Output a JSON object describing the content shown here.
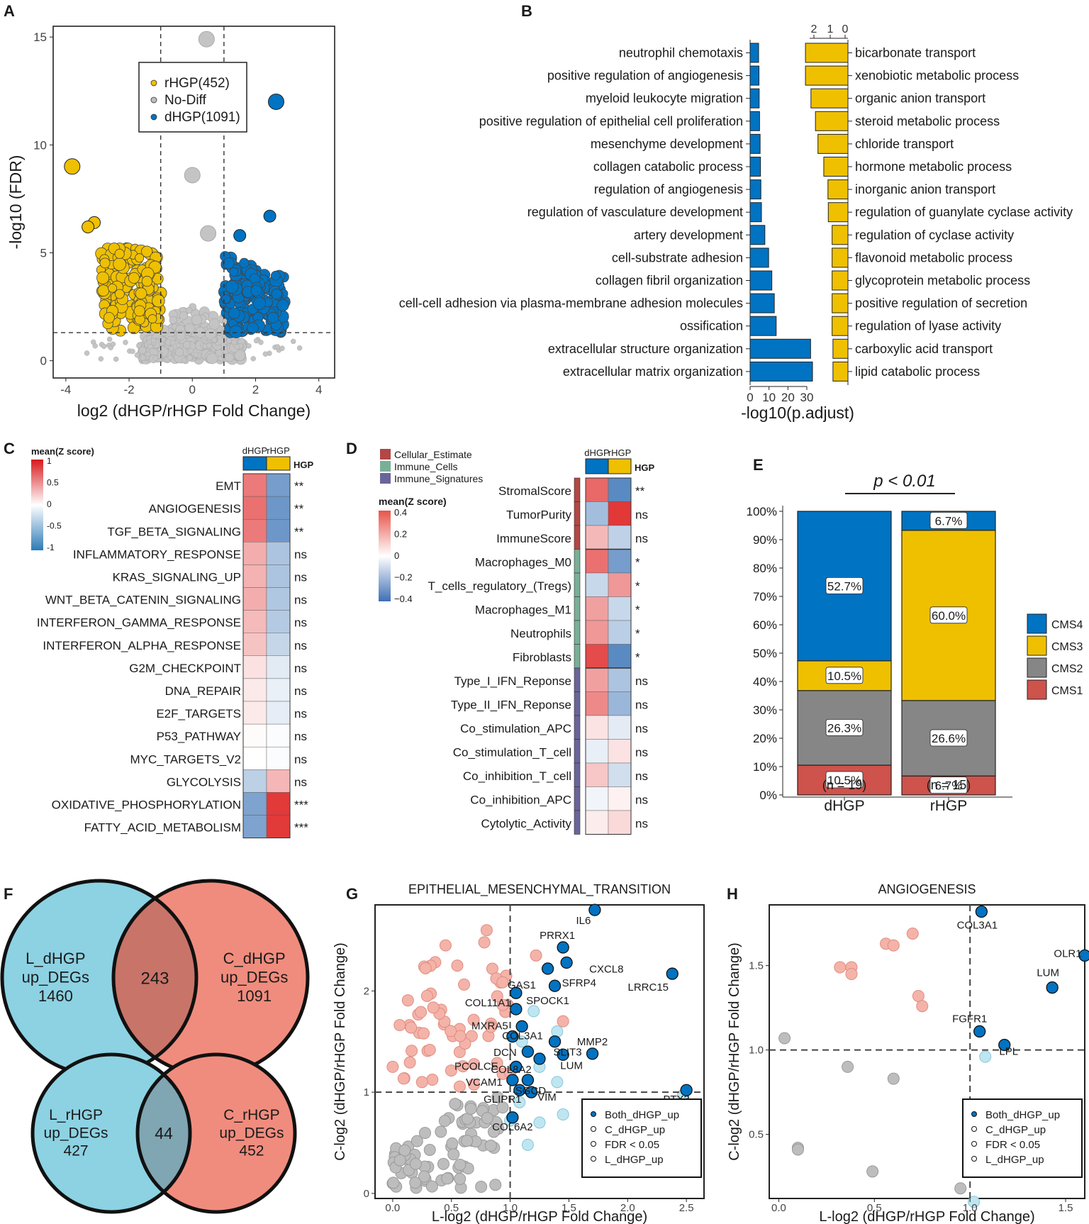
{
  "chart_data": [
    {
      "panel": "A",
      "type": "scatter",
      "xlabel": "log2 (dHGP/rHGP Fold Change)",
      "ylabel": "-log10 (FDR)",
      "xlim": [
        -4.4,
        4.5
      ],
      "ylim": [
        -0.8,
        15.5
      ],
      "xticks": [
        "-4",
        "-2",
        "0",
        "2",
        "4"
      ],
      "yticks": [
        "0",
        "5",
        "10",
        "15"
      ],
      "vlines": [
        -1,
        1
      ],
      "hline": 1.3,
      "legend": [
        {
          "label": "rHGP(452)",
          "color": "#EFC000"
        },
        {
          "label": "No-Diff",
          "color": "#BEBEBE"
        },
        {
          "label": "dHGP(1091)",
          "color": "#0073C2"
        }
      ],
      "labeled_points": [
        {
          "x": 0.45,
          "y": 14.9,
          "group": "No-Diff"
        },
        {
          "x": 2.65,
          "y": 12.0,
          "group": "dHGP"
        },
        {
          "x": -3.8,
          "y": 9.0,
          "group": "rHGP"
        },
        {
          "x": 0.0,
          "y": 8.6,
          "group": "No-Diff"
        },
        {
          "x": 2.45,
          "y": 6.7,
          "group": "dHGP"
        },
        {
          "x": -3.1,
          "y": 6.4,
          "group": "rHGP"
        },
        {
          "x": -3.3,
          "y": 6.2,
          "group": "rHGP"
        },
        {
          "x": 0.5,
          "y": 5.9,
          "group": "No-Diff"
        },
        {
          "x": 1.5,
          "y": 5.8,
          "group": "dHGP"
        }
      ]
    },
    {
      "panel": "B",
      "type": "bar",
      "xlabel": "-log10(p.adjust)",
      "left_ticks": [
        "0",
        "10",
        "20",
        "30"
      ],
      "right_ticks": [
        "2",
        "1",
        "0"
      ],
      "dHGP_terms": [
        "neutrophil chemotaxis",
        "positive regulation of angiogenesis",
        "myeloid leukocyte migration",
        "positive regulation of epithelial cell proliferation",
        "mesenchyme development",
        "collagen catabolic process",
        "regulation of angiogenesis",
        "regulation of vasculature development",
        "artery development",
        "cell-substrate adhesion",
        "collagen fibril organization",
        "cell-cell adhesion via plasma-membrane adhesion molecules",
        "ossification",
        "extracellular structure organization",
        "extracellular matrix organization"
      ],
      "dHGP_values": [
        4.5,
        4.7,
        4.8,
        5.0,
        5.3,
        5.5,
        5.7,
        6.0,
        7.8,
        9.8,
        11.5,
        12.8,
        13.8,
        32.0,
        33.0
      ],
      "rHGP_terms": [
        "bicarbonate transport",
        "xenobiotic metabolic process",
        "organic anion transport",
        "steroid metabolic process",
        "chloride transport",
        "hormone metabolic process",
        "inorganic anion transport",
        "regulation of guanylate cyclase activity",
        "regulation of cyclase activity",
        "flavonoid metabolic process",
        "glycoprotein metabolic process",
        "positive regulation of secretion",
        "regulation of lyase activity",
        "carboxylic acid transport",
        "lipid catabolic process"
      ],
      "rHGP_values": [
        2.55,
        2.55,
        2.22,
        1.95,
        1.8,
        1.45,
        1.2,
        1.18,
        0.95,
        0.95,
        0.95,
        0.95,
        0.95,
        0.9,
        0.9
      ]
    },
    {
      "panel": "C",
      "type": "heatmap",
      "legend_title": "mean(Z score)",
      "legend_ticks": [
        "1",
        "0.5",
        "0",
        "-0.5",
        "-1"
      ],
      "columns": [
        "dHGP",
        "rHGP"
      ],
      "annotation_label": "HGP",
      "rows": [
        "EMT",
        "ANGIOGENESIS",
        "TGF_BETA_SIGNALING",
        "INFLAMMATORY_RESPONSE",
        "KRAS_SIGNALING_UP",
        "WNT_BETA_CATENIN_SIGNALING",
        "INTERFERON_GAMMA_RESPONSE",
        "INTERFERON_ALPHA_RESPONSE",
        "G2M_CHECKPOINT",
        "DNA_REPAIR",
        "E2F_TARGETS",
        "P53_PATHWAY",
        "MYC_TARGETS_V2",
        "GLYCOLYSIS",
        "OXIDATIVE_PHOSPHORYLATION",
        "FATTY_ACID_METABOLISM"
      ],
      "dHGP_values": [
        0.62,
        0.66,
        0.62,
        0.38,
        0.36,
        0.38,
        0.32,
        0.28,
        0.14,
        0.1,
        0.1,
        0.02,
        0.0,
        -0.32,
        -0.62,
        -0.62
      ],
      "rHGP_values": [
        -0.66,
        -0.7,
        -0.7,
        -0.4,
        -0.4,
        -0.38,
        -0.36,
        -0.28,
        -0.14,
        -0.1,
        -0.12,
        -0.02,
        -0.02,
        0.34,
        0.92,
        0.92
      ],
      "significance": [
        "**",
        "**",
        "**",
        "ns",
        "ns",
        "ns",
        "ns",
        "ns",
        "ns",
        "ns",
        "ns",
        "ns",
        "ns",
        "ns",
        "***",
        "***"
      ]
    },
    {
      "panel": "D",
      "type": "heatmap",
      "legend_title": "mean(Z score)",
      "legend_ticks": [
        "0.4",
        "0.2",
        "0",
        "−0.2",
        "−0.4"
      ],
      "columns": [
        "dHGP",
        "rHGP"
      ],
      "annotation_label": "HGP",
      "categories_legend": [
        {
          "label": "Cellular_Estimate",
          "color": "#B24745"
        },
        {
          "label": "Immune_Cells",
          "color": "#79AF97"
        },
        {
          "label": "Immune_Signatures",
          "color": "#6A6599"
        }
      ],
      "rows": [
        "StromalScore",
        "TumorPurity",
        "ImmuneScore",
        "Macrophages_M0",
        "T_cells_regulatory_(Tregs)",
        "Macrophages_M1",
        "Neutrophils",
        "Fibroblasts",
        "Type_I_IFN_Reponse",
        "Type_II_IFN_Reponse",
        "Co_stimulation_APC",
        "Co_stimulation_T_cell",
        "Co_inhibition_T_cell",
        "Co_inhibition_APC",
        "Cytolytic_Activity"
      ],
      "row_groups": [
        0,
        0,
        0,
        1,
        1,
        1,
        1,
        1,
        2,
        2,
        2,
        2,
        2,
        2,
        2
      ],
      "dHGP_values": [
        0.32,
        -0.2,
        0.15,
        0.3,
        -0.12,
        0.2,
        0.22,
        0.38,
        0.2,
        0.25,
        0.06,
        -0.05,
        0.12,
        -0.03,
        0.04
      ],
      "rHGP_values": [
        -0.36,
        0.42,
        -0.14,
        -0.3,
        0.22,
        -0.12,
        -0.15,
        -0.36,
        -0.18,
        -0.22,
        -0.06,
        0.06,
        -0.1,
        0.03,
        0.08
      ],
      "significance": [
        "**",
        "ns",
        "ns",
        "*",
        "*",
        "*",
        "*",
        "*",
        "ns",
        "ns",
        "ns",
        "ns",
        "ns",
        "ns",
        "ns"
      ]
    },
    {
      "panel": "E",
      "type": "bar",
      "stacked": true,
      "title": "p < 0.01",
      "categories": [
        "dHGP",
        "rHGP"
      ],
      "n_labels": [
        "(n = 19)",
        "(n = 15)"
      ],
      "yticks": [
        "0%",
        "10%",
        "20%",
        "30%",
        "40%",
        "50%",
        "60%",
        "70%",
        "80%",
        "90%",
        "100%"
      ],
      "series": [
        {
          "name": "CMS1",
          "color": "#CD534C",
          "values": [
            10.5,
            6.7
          ],
          "labels": [
            "10.5%",
            "6.7%"
          ]
        },
        {
          "name": "CMS2",
          "color": "#868686",
          "values": [
            26.3,
            26.6
          ],
          "labels": [
            "26.3%",
            "26.6%"
          ]
        },
        {
          "name": "CMS3",
          "color": "#EFC000",
          "values": [
            10.5,
            60.0
          ],
          "labels": [
            "10.5%",
            "60.0%"
          ]
        },
        {
          "name": "CMS4",
          "color": "#0073C2",
          "values": [
            52.7,
            6.7
          ],
          "labels": [
            "52.7%",
            "6.7%"
          ]
        }
      ],
      "legend_order": [
        "CMS4",
        "CMS3",
        "CMS2",
        "CMS1"
      ]
    },
    {
      "panel": "F",
      "type": "venn",
      "top": {
        "left_label": [
          "L_dHGP",
          "up_DEGs",
          "1460"
        ],
        "right_label": [
          "C_dHGP",
          "up_DEGs",
          "1091"
        ],
        "overlap": "243"
      },
      "bottom": {
        "left_label": [
          "L_rHGP",
          "up_DEGs",
          "427"
        ],
        "right_label": [
          "C_rHGP",
          "up_DEGs",
          "452"
        ],
        "overlap": "44"
      }
    },
    {
      "panel": "G",
      "type": "scatter",
      "title": "EPITHELIAL_MESENCHYMAL_TRANSITION",
      "xlabel": "L-log2 (dHGP/rHGP Fold Change)",
      "ylabel": "C-log2 (dHGP/rHGP Fold Change)",
      "xlim": [
        -0.15,
        2.65
      ],
      "ylim": [
        -0.05,
        2.85
      ],
      "xticks": [
        "0.0",
        "0.5",
        "1.0",
        "1.5",
        "2.0",
        "2.5"
      ],
      "yticks": [
        "0",
        "1",
        "2"
      ],
      "legend": [
        "Both_dHGP_up",
        "C_dHGP_up",
        "FDR < 0.05",
        "L_dHGP_up"
      ],
      "labeled_points": [
        {
          "x": 1.72,
          "y": 2.8,
          "label": "IL6"
        },
        {
          "x": 1.45,
          "y": 2.43,
          "label": "PRRX1"
        },
        {
          "x": 1.48,
          "y": 2.28,
          "label": "CXCL8"
        },
        {
          "x": 1.32,
          "y": 2.22,
          "label": "SFRP4"
        },
        {
          "x": 2.38,
          "y": 2.17,
          "label": "LRRC15"
        },
        {
          "x": 1.05,
          "y": 1.98,
          "label": "GAS1"
        },
        {
          "x": 1.38,
          "y": 2.05,
          "label": "SPOCK1"
        },
        {
          "x": 1.05,
          "y": 1.82,
          "label": "COL11A1"
        },
        {
          "x": 1.1,
          "y": 1.65,
          "label": "COL3A1"
        },
        {
          "x": 1.38,
          "y": 1.5,
          "label": "SLIT3"
        },
        {
          "x": 1.02,
          "y": 1.55,
          "label": "MXRA5"
        },
        {
          "x": 1.15,
          "y": 1.4,
          "label": "DCN"
        },
        {
          "x": 1.25,
          "y": 1.33,
          "label": "COL8A2"
        },
        {
          "x": 1.7,
          "y": 1.38,
          "label": "MMP2"
        },
        {
          "x": 1.45,
          "y": 1.37,
          "label": "LUM"
        },
        {
          "x": 1.05,
          "y": 1.25,
          "label": "PCOLCE"
        },
        {
          "x": 1.15,
          "y": 1.12,
          "label": "SGCD"
        },
        {
          "x": 1.02,
          "y": 1.12,
          "label": "VCAM1"
        },
        {
          "x": 1.08,
          "y": 1.02,
          "label": "GLIPR1"
        },
        {
          "x": 1.18,
          "y": 1.0,
          "label": "VIM"
        },
        {
          "x": 2.5,
          "y": 1.02,
          "label": "PTX3"
        },
        {
          "x": 1.02,
          "y": 0.75,
          "label": "COL6A2"
        }
      ]
    },
    {
      "panel": "H",
      "type": "scatter",
      "title": "ANGIOGENESIS",
      "xlabel": "L-log2 (dHGP/rHGP Fold Change)",
      "ylabel": "C-log2 (dHGP/rHGP Fold Change)",
      "xlim": [
        -0.05,
        1.6
      ],
      "ylim": [
        0.12,
        1.86
      ],
      "xticks": [
        "0.0",
        "0.5",
        "1.0",
        "1.5"
      ],
      "yticks": [
        "0.5",
        "1.0",
        "1.5"
      ],
      "legend": [
        "Both_dHGP_up",
        "C_dHGP_up",
        "FDR < 0.05",
        "L_dHGP_up"
      ],
      "labeled_points": [
        {
          "x": 1.06,
          "y": 1.82,
          "label": "COL3A1"
        },
        {
          "x": 1.6,
          "y": 1.56,
          "label": "OLR1"
        },
        {
          "x": 1.43,
          "y": 1.37,
          "label": "LUM"
        },
        {
          "x": 1.05,
          "y": 1.11,
          "label": "FGFR1"
        },
        {
          "x": 1.18,
          "y": 1.03,
          "label": "LPL"
        }
      ]
    }
  ],
  "panel_letters": [
    "A",
    "B",
    "C",
    "D",
    "E",
    "F",
    "G",
    "H"
  ],
  "colors": {
    "dhgp": "#0073C2",
    "rhgp": "#EFC000",
    "nodiff": "#BEBEBE",
    "salmon": "#F08C7D",
    "cyan": "#8CD2E3"
  }
}
